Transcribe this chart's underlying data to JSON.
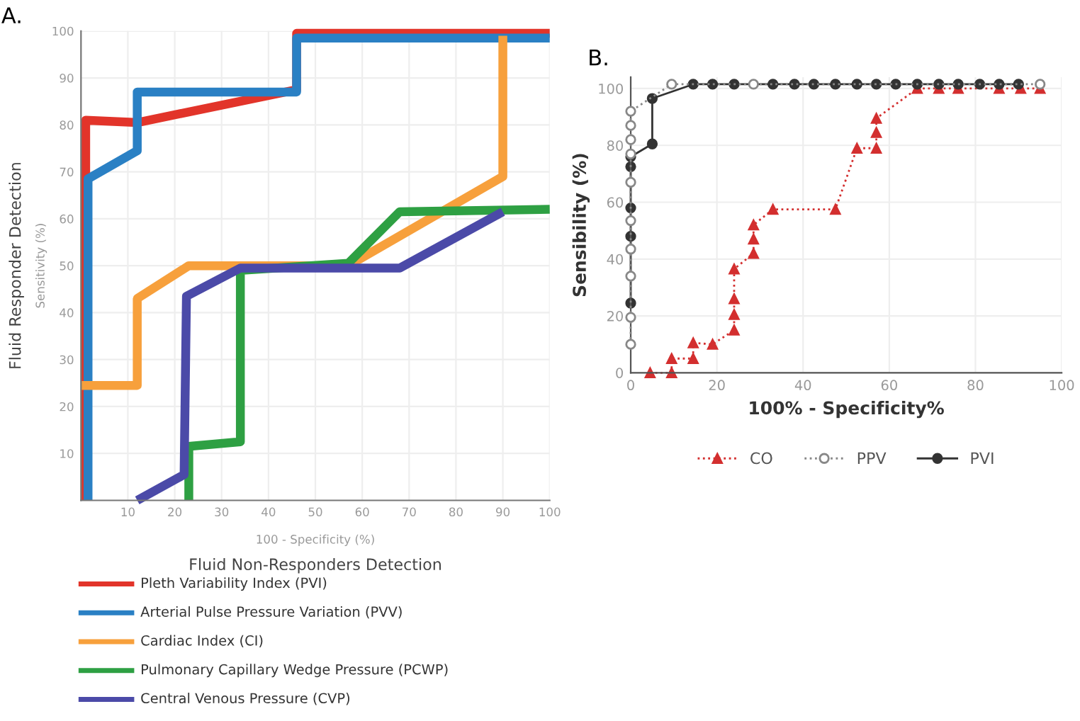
{
  "chart_data": [
    {
      "type": "line",
      "title": "A.",
      "xlabel": "Fluid Non-Responders Detection",
      "ylabel": "Fluid Responder Detection",
      "annotations": [
        "100 - Specificity (%)",
        "Sensitivity (%)"
      ],
      "xlim": [
        0,
        100
      ],
      "ylim": [
        0,
        100
      ],
      "xticks": [
        10,
        20,
        30,
        40,
        50,
        60,
        70,
        80,
        90,
        100
      ],
      "yticks": [
        10,
        20,
        30,
        40,
        50,
        60,
        70,
        80,
        90,
        100
      ],
      "grid": true,
      "legend": "bottom",
      "marker": "none",
      "line_style": "solid",
      "series": [
        {
          "name": "Pleth Variability Index (PVI)",
          "color": "#e2342a",
          "x": [
            1,
            1,
            12,
            46,
            46,
            100
          ],
          "values": [
            0,
            81,
            80.5,
            87.5,
            99.5,
            99.5
          ]
        },
        {
          "name": "Arterial Pulse Pressure Variation (PVV)",
          "color": "#2a80c4",
          "x": [
            1.5,
            1.5,
            12,
            12,
            46,
            46,
            100
          ],
          "values": [
            0,
            68.5,
            74.5,
            87,
            87,
            98.5,
            98.5
          ]
        },
        {
          "name": "Cardiac Index (CI)",
          "color": "#f7a03c",
          "x": [
            0,
            12,
            12,
            23,
            34,
            57,
            90,
            90
          ],
          "values": [
            24.5,
            24.5,
            43,
            50,
            50,
            50,
            69,
            99
          ]
        },
        {
          "name": "Pulmonary Capillary Wedge Pressure (PCWP)",
          "color": "#2ea043",
          "x": [
            23,
            23,
            34,
            34,
            57,
            68,
            100
          ],
          "values": [
            0,
            11.5,
            12.5,
            49,
            50.5,
            61.5,
            62
          ]
        },
        {
          "name": "Central Venous Pressure (CVP)",
          "color": "#4b4aa8",
          "x": [
            12,
            22,
            22.5,
            34,
            68,
            90
          ],
          "values": [
            0,
            5.5,
            43.5,
            49.5,
            49.5,
            61.5
          ]
        }
      ]
    },
    {
      "type": "line",
      "title": "B.",
      "xlabel": "100% - Specificity%",
      "ylabel": "Sensibility (%)",
      "xlim": [
        0,
        100
      ],
      "ylim": [
        0,
        104
      ],
      "xticks": [
        0,
        20,
        40,
        60,
        80,
        100
      ],
      "yticks": [
        0,
        20,
        40,
        60,
        80,
        100
      ],
      "grid": true,
      "legend": "bottom",
      "series": [
        {
          "name": "CO",
          "color": "#d32f2f",
          "marker": "triangle",
          "line_style": "dotted",
          "x": [
            4.5,
            9.5,
            9.5,
            14.5,
            14.5,
            19,
            24,
            24,
            24,
            24,
            28.5,
            28.5,
            28.5,
            33,
            47.5,
            52.5,
            57,
            57,
            57,
            66.5,
            71.5,
            76,
            85.5,
            90.5,
            95
          ],
          "values": [
            0,
            0,
            5,
            5,
            10.5,
            10,
            15,
            20.5,
            26,
            36.5,
            42,
            47,
            52,
            57.5,
            57.5,
            79,
            79,
            84.5,
            89.5,
            100,
            100,
            100,
            100,
            100,
            100
          ]
        },
        {
          "name": "PPV",
          "color": "#888888",
          "marker": "circle",
          "line_style": "dotted",
          "x": [
            0,
            0,
            0,
            0,
            0,
            0,
            0,
            0,
            0,
            0,
            9.5,
            28.5,
            95
          ],
          "values": [
            10,
            19.5,
            34,
            43.5,
            53.5,
            67,
            77,
            82,
            87,
            92,
            101.5,
            101.5,
            101.5
          ]
        },
        {
          "name": "PVI",
          "color": "#333333",
          "marker": "circle",
          "line_style": "solid",
          "x": [
            0,
            0,
            0,
            0,
            0,
            5,
            5,
            14.5,
            19,
            24,
            33,
            38,
            42.5,
            47.5,
            52.5,
            57,
            61.5,
            66.5,
            71.5,
            76,
            81,
            85.5,
            90
          ],
          "values": [
            24.5,
            48,
            58,
            72.5,
            76,
            80.5,
            96.5,
            101.5,
            101.5,
            101.5,
            101.5,
            101.5,
            101.5,
            101.5,
            101.5,
            101.5,
            101.5,
            101.5,
            101.5,
            101.5,
            101.5,
            101.5,
            101.5
          ]
        }
      ]
    }
  ]
}
